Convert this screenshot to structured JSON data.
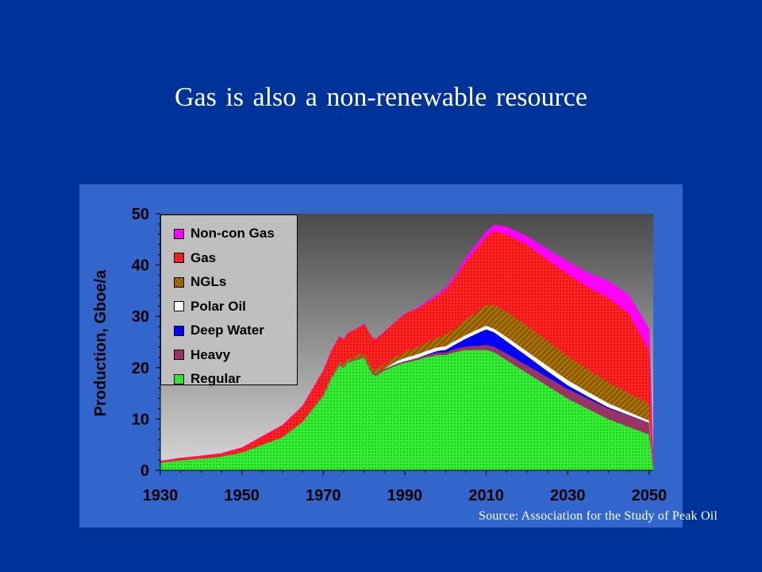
{
  "slide": {
    "title": "Gas is also a non-renewable resource",
    "source": "Source: Association for the Study of Peak Oil"
  },
  "chart_data": {
    "type": "area",
    "stacked": true,
    "title": "",
    "xlabel": "",
    "ylabel": "Production, Gboe/a",
    "xlim": [
      1930,
      2051
    ],
    "ylim": [
      0,
      50
    ],
    "x_ticks": [
      1930,
      1950,
      1970,
      1990,
      2010,
      2030,
      2050
    ],
    "y_ticks": [
      0,
      10,
      20,
      30,
      40,
      50
    ],
    "grid": false,
    "legend_position": "top-left",
    "x": [
      1930,
      1935,
      1940,
      1945,
      1950,
      1955,
      1960,
      1965,
      1970,
      1972,
      1974,
      1975,
      1976,
      1978,
      1980,
      1982,
      1983,
      1985,
      1988,
      1990,
      1993,
      1995,
      1998,
      2000,
      2002,
      2005,
      2008,
      2010,
      2012,
      2015,
      2020,
      2025,
      2030,
      2035,
      2040,
      2045,
      2050,
      2051
    ],
    "series": [
      {
        "name": "Regular",
        "color": "#33ee33",
        "values": [
          1.5,
          2,
          2.3,
          2.7,
          3.5,
          5,
          6.5,
          9.5,
          14.5,
          18,
          20.5,
          20,
          21,
          21.5,
          22,
          18.8,
          18.5,
          19.5,
          20.5,
          21,
          21.5,
          22,
          22.5,
          22.5,
          23,
          23.5,
          23.5,
          23.5,
          23,
          21.5,
          19,
          16.5,
          14,
          12,
          10,
          8.5,
          7,
          0.5
        ]
      },
      {
        "name": "Heavy",
        "color": "#993366",
        "values": [
          0,
          0,
          0,
          0,
          0,
          0,
          0,
          0,
          0.2,
          0.2,
          0.2,
          0.2,
          0.2,
          0.2,
          0.3,
          0.3,
          0.3,
          0.3,
          0.3,
          0.3,
          0.4,
          0.4,
          0.5,
          0.5,
          0.6,
          0.7,
          0.8,
          1,
          1.1,
          1.3,
          1.5,
          1.7,
          1.9,
          2,
          2.1,
          2.2,
          2.3,
          0
        ]
      },
      {
        "name": "Deep Water",
        "color": "#0000ff",
        "values": [
          0,
          0,
          0,
          0,
          0,
          0,
          0,
          0,
          0,
          0,
          0,
          0,
          0,
          0,
          0,
          0,
          0,
          0,
          0,
          0,
          0,
          0.1,
          0.3,
          0.5,
          0.8,
          1.5,
          2.5,
          3,
          2.8,
          2.4,
          1.8,
          1.2,
          0.7,
          0.4,
          0.2,
          0.1,
          0,
          0
        ]
      },
      {
        "name": "Polar Oil",
        "color": "#ffffff",
        "values": [
          0,
          0,
          0,
          0,
          0,
          0,
          0,
          0,
          0,
          0,
          0,
          0,
          0,
          0,
          0,
          0,
          0,
          0,
          0.5,
          0.6,
          0.7,
          0.7,
          0.7,
          0.7,
          0.7,
          0.7,
          0.7,
          0.7,
          0.7,
          0.8,
          0.9,
          1,
          1,
          0.9,
          0.8,
          0.6,
          0.4,
          0
        ]
      },
      {
        "name": "NGLs",
        "color": "#b5651d",
        "values": [
          0,
          0,
          0,
          0,
          0,
          0,
          0,
          0.1,
          0.2,
          0.3,
          0.4,
          0.4,
          0.5,
          0.6,
          0.7,
          0.8,
          0.8,
          0.9,
          1,
          1.2,
          1.4,
          1.6,
          1.9,
          2.2,
          2.5,
          3,
          3.6,
          4.1,
          4.6,
          5,
          5,
          4.9,
          4.7,
          4.4,
          4.1,
          3.7,
          3.3,
          0.8
        ]
      },
      {
        "name": "Gas",
        "color": "#ff2222",
        "values": [
          0.3,
          0.4,
          0.5,
          0.6,
          0.9,
          1.6,
          2.3,
          3,
          4.5,
          4.8,
          5,
          4.9,
          5,
          5.2,
          5.5,
          5.9,
          6,
          6.3,
          6.8,
          7.4,
          7.5,
          7.6,
          8.1,
          8.7,
          9.5,
          11.2,
          12.4,
          13.2,
          14.4,
          15,
          15.8,
          15.8,
          16,
          16,
          16.5,
          15.5,
          10.5,
          0.6
        ]
      },
      {
        "name": "Non-con Gas",
        "color": "#ff00ff",
        "values": [
          0,
          0,
          0,
          0,
          0,
          0,
          0,
          0,
          0,
          0,
          0,
          0,
          0,
          0,
          0,
          0,
          0,
          0,
          0,
          0,
          0.1,
          0.2,
          0.3,
          0.4,
          0.5,
          0.7,
          0.9,
          1,
          1.2,
          1.4,
          1.6,
          2,
          2.4,
          2.7,
          3.2,
          3.5,
          4,
          0.2
        ]
      }
    ]
  }
}
